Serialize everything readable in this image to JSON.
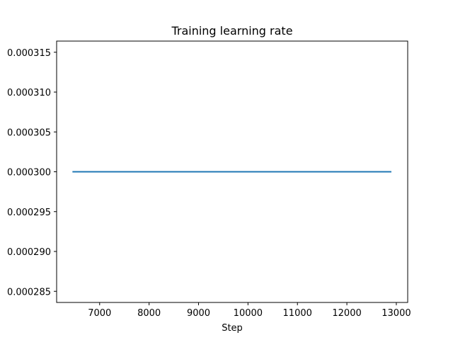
{
  "chart_data": {
    "type": "line",
    "title": "Training learning rate",
    "xlabel": "Step",
    "ylabel": "",
    "xlim": [
      6130,
      13230
    ],
    "ylim": [
      0.0002836,
      0.0003164
    ],
    "x_ticks": [
      7000,
      8000,
      9000,
      10000,
      11000,
      12000,
      13000
    ],
    "y_ticks": [
      0.000285,
      0.00029,
      0.000295,
      0.0003,
      0.000305,
      0.00031,
      0.000315
    ],
    "x_tick_labels": [
      "7000",
      "8000",
      "9000",
      "10000",
      "11000",
      "12000",
      "13000"
    ],
    "y_tick_labels": [
      "0.000285",
      "0.000290",
      "0.000295",
      "0.000300",
      "0.000305",
      "0.000310",
      "0.000315"
    ],
    "grid": false,
    "series": [
      {
        "color": "#1f77b4",
        "x": [
          6450,
          12900
        ],
        "y": [
          0.0003,
          0.0003
        ]
      }
    ]
  }
}
